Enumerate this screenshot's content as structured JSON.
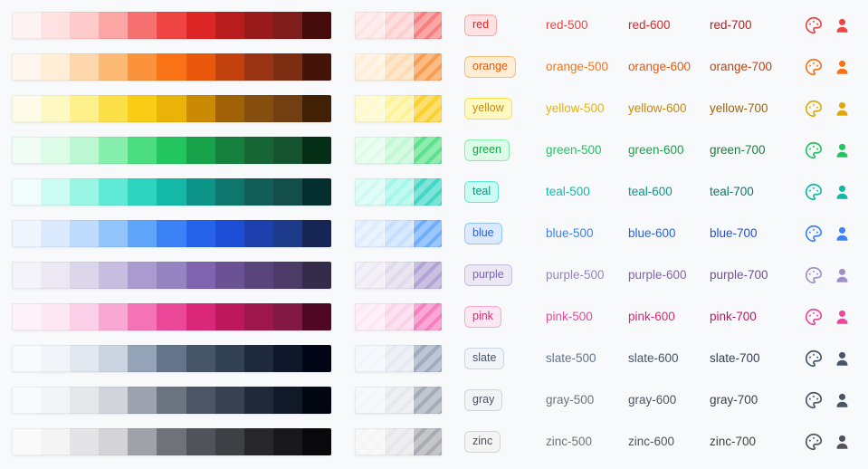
{
  "page": {
    "background_color": "#f8f9fb"
  },
  "shade_steps": [
    "50",
    "100",
    "200",
    "300",
    "400",
    "500",
    "600",
    "700",
    "800",
    "900",
    "950"
  ],
  "striped_steps": [
    "100",
    "200",
    "400"
  ],
  "label_steps": [
    "500",
    "600",
    "700"
  ],
  "icons": [
    {
      "name": "palette-icon",
      "style": "outline"
    },
    {
      "name": "person-icon",
      "style": "filled"
    }
  ],
  "rows": [
    {
      "name": "red",
      "badge": {
        "label": "red",
        "bg": "#fee2e2",
        "border": "#fca5a5",
        "text": "#dc2626"
      },
      "shades": [
        "#fef2f2",
        "#fee2e2",
        "#fecaca",
        "#fca5a5",
        "#f87171",
        "#ef4444",
        "#dc2626",
        "#b91c1c",
        "#991b1b",
        "#7f1d1d",
        "#450a0a"
      ],
      "striped": [
        "#fee2e2",
        "#fecaca",
        "#f87171"
      ],
      "labels": [
        {
          "text": "red-500",
          "color": "#ef4444"
        },
        {
          "text": "red-600",
          "color": "#dc2626"
        },
        {
          "text": "red-700",
          "color": "#b91c1c"
        }
      ],
      "icon_color": "#ef4444"
    },
    {
      "name": "orange",
      "badge": {
        "label": "orange",
        "bg": "#ffedd5",
        "border": "#fdba74",
        "text": "#ea580c"
      },
      "shades": [
        "#fff7ed",
        "#ffedd5",
        "#fed7aa",
        "#fdba74",
        "#fb923c",
        "#f97316",
        "#ea580c",
        "#c2410c",
        "#9a3412",
        "#7c2d12",
        "#431407"
      ],
      "striped": [
        "#ffedd5",
        "#fed7aa",
        "#fb923c"
      ],
      "labels": [
        {
          "text": "orange-500",
          "color": "#f97316"
        },
        {
          "text": "orange-600",
          "color": "#ea580c"
        },
        {
          "text": "orange-700",
          "color": "#c2410c"
        }
      ],
      "icon_color": "#f97316"
    },
    {
      "name": "yellow",
      "badge": {
        "label": "yellow",
        "bg": "#fef9c3",
        "border": "#fde047",
        "text": "#ca8a04"
      },
      "shades": [
        "#fefce8",
        "#fef9c3",
        "#fef08a",
        "#fde047",
        "#facc15",
        "#eab308",
        "#ca8a04",
        "#a16207",
        "#854d0e",
        "#713f12",
        "#422006"
      ],
      "striped": [
        "#fef9c3",
        "#fef08a",
        "#facc15"
      ],
      "labels": [
        {
          "text": "yellow-500",
          "color": "#eab308"
        },
        {
          "text": "yellow-600",
          "color": "#ca8a04"
        },
        {
          "text": "yellow-700",
          "color": "#a16207"
        }
      ],
      "icon_color": "#e0a90b"
    },
    {
      "name": "green",
      "badge": {
        "label": "green",
        "bg": "#dcfce7",
        "border": "#86efac",
        "text": "#16a34a"
      },
      "shades": [
        "#f0fdf4",
        "#dcfce7",
        "#bbf7d0",
        "#86efac",
        "#4ade80",
        "#22c55e",
        "#16a34a",
        "#15803d",
        "#166534",
        "#14532d",
        "#052e16"
      ],
      "striped": [
        "#dcfce7",
        "#bbf7d0",
        "#4ade80"
      ],
      "labels": [
        {
          "text": "green-500",
          "color": "#22c55e"
        },
        {
          "text": "green-600",
          "color": "#16a34a"
        },
        {
          "text": "green-700",
          "color": "#15803d"
        }
      ],
      "icon_color": "#22c55e"
    },
    {
      "name": "teal",
      "badge": {
        "label": "teal",
        "bg": "#ccfbf1",
        "border": "#5eead4",
        "text": "#0d9488"
      },
      "shades": [
        "#f0fdfa",
        "#ccfbf1",
        "#99f6e4",
        "#5eead4",
        "#2dd4bf",
        "#14b8a6",
        "#0d9488",
        "#0f766e",
        "#115e59",
        "#134e4a",
        "#042f2e"
      ],
      "striped": [
        "#ccfbf1",
        "#99f6e4",
        "#2dd4bf"
      ],
      "labels": [
        {
          "text": "teal-500",
          "color": "#14b8a6"
        },
        {
          "text": "teal-600",
          "color": "#0d9488"
        },
        {
          "text": "teal-700",
          "color": "#0f766e"
        }
      ],
      "icon_color": "#14b8a6"
    },
    {
      "name": "blue",
      "badge": {
        "label": "blue",
        "bg": "#dbeafe",
        "border": "#93c5fd",
        "text": "#2563eb"
      },
      "shades": [
        "#eff6ff",
        "#dbeafe",
        "#bfdbfe",
        "#93c5fd",
        "#60a5fa",
        "#3b82f6",
        "#2563eb",
        "#1d4ed8",
        "#1e40af",
        "#1e3a8a",
        "#172554"
      ],
      "striped": [
        "#dbeafe",
        "#bfdbfe",
        "#60a5fa"
      ],
      "labels": [
        {
          "text": "blue-500",
          "color": "#3b82f6"
        },
        {
          "text": "blue-600",
          "color": "#2563eb"
        },
        {
          "text": "blue-700",
          "color": "#1d4ed8"
        }
      ],
      "icon_color": "#3b82f6"
    },
    {
      "name": "purple",
      "badge": {
        "label": "purple",
        "bg": "#ebe8f4",
        "border": "#c7bde0",
        "text": "#7f64af"
      },
      "shades": [
        "#f5f3fa",
        "#ebe8f4",
        "#dbd6ea",
        "#c7bde0",
        "#a99bd0",
        "#9583c1",
        "#7f64af",
        "#6b5294",
        "#59447b",
        "#4b3b66",
        "#352b4b"
      ],
      "striped": [
        "#ebe8f4",
        "#dbd6ea",
        "#a99bd0"
      ],
      "labels": [
        {
          "text": "purple-500",
          "color": "#9583c1"
        },
        {
          "text": "purple-600",
          "color": "#7f64af"
        },
        {
          "text": "purple-700",
          "color": "#6b5294"
        }
      ],
      "icon_color": "#a08fc8"
    },
    {
      "name": "pink",
      "badge": {
        "label": "pink",
        "bg": "#fce7f3",
        "border": "#f9a8d4",
        "text": "#db2777"
      },
      "shades": [
        "#fdf2f8",
        "#fce7f3",
        "#fbcfe8",
        "#f9a8d4",
        "#f472b6",
        "#ec4899",
        "#db2777",
        "#be185d",
        "#9d174d",
        "#831843",
        "#500724"
      ],
      "striped": [
        "#fce7f3",
        "#fbcfe8",
        "#f472b6"
      ],
      "labels": [
        {
          "text": "pink-500",
          "color": "#ec4899"
        },
        {
          "text": "pink-600",
          "color": "#db2777"
        },
        {
          "text": "pink-700",
          "color": "#be185d"
        }
      ],
      "icon_color": "#ec4899"
    },
    {
      "name": "slate",
      "badge": {
        "label": "slate",
        "bg": "#f1f5f9",
        "border": "#cbd5e1",
        "text": "#475569"
      },
      "shades": [
        "#f8fafc",
        "#f1f5f9",
        "#e2e8f0",
        "#cbd5e1",
        "#94a3b8",
        "#64748b",
        "#475569",
        "#334155",
        "#1e293b",
        "#0f172a",
        "#020617"
      ],
      "striped": [
        "#f1f5f9",
        "#e2e8f0",
        "#94a3b8"
      ],
      "labels": [
        {
          "text": "slate-500",
          "color": "#64748b"
        },
        {
          "text": "slate-600",
          "color": "#475569"
        },
        {
          "text": "slate-700",
          "color": "#334155"
        }
      ],
      "icon_color": "#475569"
    },
    {
      "name": "gray",
      "badge": {
        "label": "gray",
        "bg": "#f3f4f6",
        "border": "#d1d5db",
        "text": "#4b5563"
      },
      "shades": [
        "#f9fafb",
        "#f3f4f6",
        "#e5e7eb",
        "#d1d5db",
        "#9ca3af",
        "#6b7280",
        "#4b5563",
        "#374151",
        "#1f2937",
        "#111827",
        "#030712"
      ],
      "striped": [
        "#f3f4f6",
        "#e5e7eb",
        "#9ca3af"
      ],
      "labels": [
        {
          "text": "gray-500",
          "color": "#6b7280"
        },
        {
          "text": "gray-600",
          "color": "#4b5563"
        },
        {
          "text": "gray-700",
          "color": "#374151"
        }
      ],
      "icon_color": "#4b5563"
    },
    {
      "name": "zinc",
      "badge": {
        "label": "zinc",
        "bg": "#f4f4f5",
        "border": "#d4d4d8",
        "text": "#52525b"
      },
      "shades": [
        "#fafafa",
        "#f4f4f5",
        "#e4e4e7",
        "#d4d4d8",
        "#a1a1aa",
        "#71717a",
        "#52525b",
        "#3f3f46",
        "#27272a",
        "#18181b",
        "#09090b"
      ],
      "striped": [
        "#f4f4f5",
        "#e4e4e7",
        "#a1a1aa"
      ],
      "labels": [
        {
          "text": "zinc-500",
          "color": "#71717a"
        },
        {
          "text": "zinc-600",
          "color": "#52525b"
        },
        {
          "text": "zinc-700",
          "color": "#3f3f46"
        }
      ],
      "icon_color": "#52525b"
    }
  ]
}
